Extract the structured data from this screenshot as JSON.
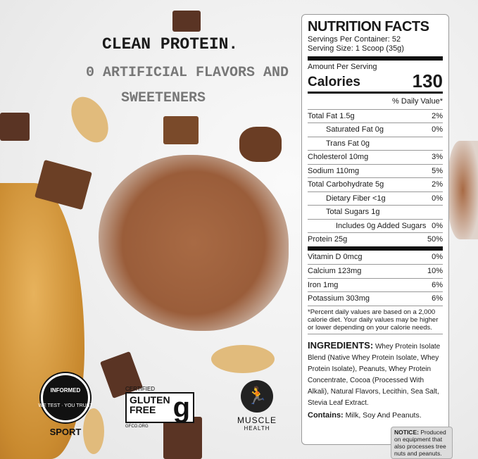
{
  "headline": {
    "line1": "CLEAN PROTEIN.",
    "line2": "0 ARTIFICIAL FLAVORS AND",
    "line3": "SWEETENERS"
  },
  "nutrition": {
    "title": "NUTRITION FACTS",
    "servings_per_container": "Servings Per Container: 52",
    "serving_size": "Serving Size: 1 Scoop (35g)",
    "amount_per_serving": "Amount Per Serving",
    "calories_label": "Calories",
    "calories_value": "130",
    "dv_header": "% Daily Value*",
    "rows": [
      {
        "label": "Total Fat 1.5g",
        "dv": "2%"
      },
      {
        "label": "Saturated Fat 0g",
        "dv": "0%"
      },
      {
        "label": "Trans Fat 0g",
        "dv": ""
      },
      {
        "label": "Cholesterol 10mg",
        "dv": "3%"
      },
      {
        "label": "Sodium 110mg",
        "dv": "5%"
      },
      {
        "label": "Total Carbohydrate 5g",
        "dv": "2%"
      },
      {
        "label": "Dietary Fiber <1g",
        "dv": "0%"
      },
      {
        "label": "Total Sugars 1g",
        "dv": ""
      },
      {
        "label": "Includes 0g Added Sugars",
        "dv": "0%"
      },
      {
        "label": "Protein 25g",
        "dv": "50%"
      }
    ],
    "vitamins": [
      {
        "label": "Vitamin D 0mcg",
        "dv": "0%"
      },
      {
        "label": "Calcium 123mg",
        "dv": "10%"
      },
      {
        "label": "Iron 1mg",
        "dv": "6%"
      },
      {
        "label": "Potassium 303mg",
        "dv": "6%"
      }
    ],
    "footnote": "*Percent daily values are based on a 2,000 calorie diet. Your daily values may be higher or lower depending on your calorie needs.",
    "ingredients_label": "INGREDIENTS:",
    "ingredients": "Whey Protein Isolate Blend (Native Whey Protein Isolate, Whey Protein Isolate), Peanuts, Whey Protein Concentrate, Cocoa (Processed With Alkali), Natural Flavors, Lecithin, Sea Salt, Stevia Leaf Extract.",
    "contains_label": "Contains:",
    "contains": "Milk, Soy And Peanuts.",
    "notice_label": "NOTICE:",
    "notice": "Produced on equipment that also processes tree nuts and peanuts."
  },
  "logos": {
    "informed": {
      "ring_top": "INFORMED",
      "ring_bottom": "WE TEST · YOU TRUST",
      "label": "SPORT"
    },
    "gluten_free": {
      "top": "CERTIFIED",
      "line1": "GLUTEN",
      "line2": "FREE",
      "url": "GFCO.ORG"
    },
    "muscle_health": {
      "line1": "MUSCLE",
      "line2": "HEALTH",
      "icon": "runner-icon"
    }
  }
}
